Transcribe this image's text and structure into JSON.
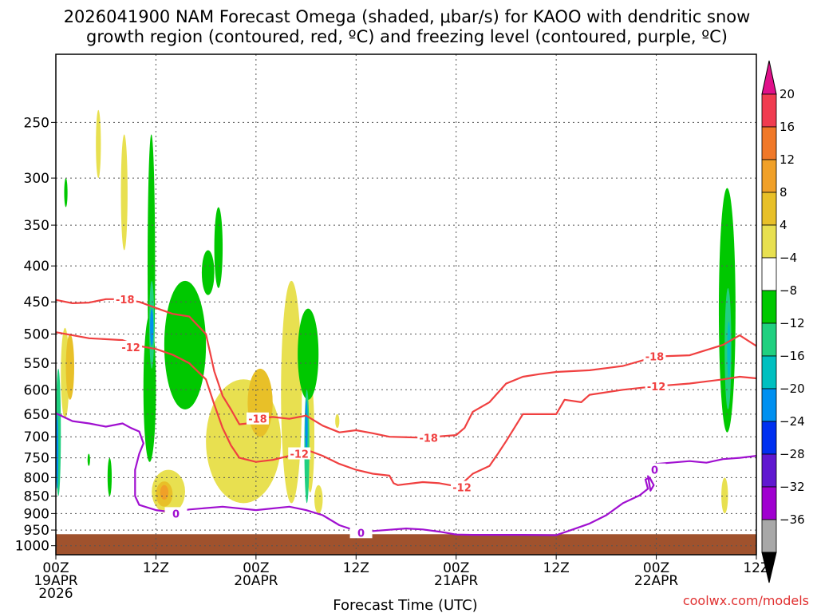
{
  "chart_data": {
    "type": "heatmap",
    "title_line1": "2026041900 NAM Forecast Omega (shaded, μbar/s) for KAOO with dendritic snow",
    "title_line2": "growth region (contoured, red, ºC) and freezing level (contoured, purple, ºC)",
    "xlabel": "Forecast Time (UTC)",
    "credit": "coolwx.com/models",
    "x_hours": [
      0,
      84
    ],
    "x_ticks": [
      {
        "h": 0,
        "l1": "00Z",
        "l2": "19APR",
        "l3": "2026"
      },
      {
        "h": 12,
        "l1": "12Z",
        "l2": "",
        "l3": ""
      },
      {
        "h": 24,
        "l1": "00Z",
        "l2": "20APR",
        "l3": ""
      },
      {
        "h": 36,
        "l1": "12Z",
        "l2": "",
        "l3": ""
      },
      {
        "h": 48,
        "l1": "00Z",
        "l2": "21APR",
        "l3": ""
      },
      {
        "h": 60,
        "l1": "12Z",
        "l2": "",
        "l3": ""
      },
      {
        "h": 72,
        "l1": "00Z",
        "l2": "22APR",
        "l3": ""
      },
      {
        "h": 84,
        "l1": "12Z",
        "l2": "",
        "l3": ""
      }
    ],
    "y_ticks": [
      250,
      300,
      350,
      400,
      450,
      500,
      550,
      600,
      650,
      700,
      750,
      800,
      850,
      900,
      950,
      1000
    ],
    "y_range_hpa": [
      200,
      1030
    ],
    "ground_top_hpa": 963,
    "grid": true,
    "colorbar": {
      "labels": [
        "20",
        "16",
        "12",
        "8",
        "4",
        "−4",
        "−8",
        "−12",
        "−16",
        "−20",
        "−24",
        "−28",
        "−32",
        "−36"
      ],
      "colors": [
        "#f03c50",
        "#f07828",
        "#f0a028",
        "#e8c028",
        "#e8e050",
        "#ffffff",
        "#00c800",
        "#20d080",
        "#00c0c0",
        "#0090f0",
        "#0030f0",
        "#6018d0",
        "#a000d0",
        "#a8a8a8"
      ],
      "top_arrow": "#e0108a",
      "bottom_arrow": "#000000"
    },
    "contours": [
      {
        "name": "-18",
        "color": "#f04040",
        "points": [
          [
            0,
            447
          ],
          [
            2,
            452
          ],
          [
            4,
            451
          ],
          [
            6,
            446
          ],
          [
            8,
            446
          ],
          [
            10,
            450
          ],
          [
            12,
            459
          ],
          [
            14,
            468
          ],
          [
            16,
            472
          ],
          [
            18,
            500
          ],
          [
            19,
            565
          ],
          [
            20,
            612
          ],
          [
            21,
            640
          ],
          [
            22,
            672
          ],
          [
            23,
            670
          ],
          [
            24,
            660
          ],
          [
            26,
            656
          ],
          [
            28,
            660
          ],
          [
            30,
            653
          ],
          [
            32,
            675
          ],
          [
            34,
            690
          ],
          [
            36,
            685
          ],
          [
            38,
            692
          ],
          [
            40,
            700
          ],
          [
            44,
            702
          ],
          [
            48,
            696
          ],
          [
            49,
            680
          ],
          [
            50,
            645
          ],
          [
            52,
            625
          ],
          [
            54,
            588
          ],
          [
            56,
            575
          ],
          [
            58,
            570
          ],
          [
            60,
            566
          ],
          [
            64,
            563
          ],
          [
            68,
            555
          ],
          [
            72,
            538
          ],
          [
            76,
            536
          ],
          [
            78,
            527
          ],
          [
            80,
            518
          ],
          [
            82,
            502
          ],
          [
            84,
            520
          ]
        ],
        "labels": [
          {
            "h": 8.3,
            "p": 446,
            "t": "-18"
          },
          {
            "h": 24.2,
            "p": 660,
            "t": "-18"
          },
          {
            "h": 44.7,
            "p": 702,
            "t": "-18"
          },
          {
            "h": 71.8,
            "p": 538,
            "t": "-18"
          }
        ]
      },
      {
        "name": "-12",
        "color": "#f04040",
        "points": [
          [
            0,
            497
          ],
          [
            4,
            507
          ],
          [
            8,
            510
          ],
          [
            10,
            520
          ],
          [
            12,
            525
          ],
          [
            14,
            535
          ],
          [
            16,
            550
          ],
          [
            18,
            580
          ],
          [
            19,
            630
          ],
          [
            20,
            680
          ],
          [
            21,
            720
          ],
          [
            22,
            750
          ],
          [
            24,
            760
          ],
          [
            26,
            755
          ],
          [
            28,
            745
          ],
          [
            30,
            730
          ],
          [
            32,
            745
          ],
          [
            34,
            765
          ],
          [
            36,
            780
          ],
          [
            38,
            790
          ],
          [
            40,
            795
          ],
          [
            40.5,
            815
          ],
          [
            41,
            820
          ],
          [
            44,
            812
          ],
          [
            46,
            815
          ],
          [
            48,
            823
          ],
          [
            49,
            810
          ],
          [
            50,
            790
          ],
          [
            52,
            770
          ],
          [
            53,
            740
          ],
          [
            54,
            710
          ],
          [
            56,
            650
          ],
          [
            60,
            650
          ],
          [
            61,
            620
          ],
          [
            63,
            625
          ],
          [
            64,
            610
          ],
          [
            68,
            600
          ],
          [
            72,
            593
          ],
          [
            76,
            588
          ],
          [
            80,
            580
          ],
          [
            82,
            575
          ],
          [
            84,
            578
          ]
        ],
        "labels": [
          {
            "h": 9.0,
            "p": 522,
            "t": "-12"
          },
          {
            "h": 29.2,
            "p": 740,
            "t": "-12"
          },
          {
            "h": 48.7,
            "p": 826,
            "t": "-12"
          },
          {
            "h": 72.0,
            "p": 593,
            "t": "-12"
          }
        ]
      },
      {
        "name": "0",
        "color": "#a010d0",
        "points": [
          [
            0,
            648
          ],
          [
            2,
            665
          ],
          [
            4,
            670
          ],
          [
            6,
            677
          ],
          [
            8,
            670
          ],
          [
            9,
            680
          ],
          [
            10,
            688
          ],
          [
            10.5,
            715
          ],
          [
            10,
            740
          ],
          [
            9.5,
            780
          ],
          [
            9.5,
            850
          ],
          [
            10,
            875
          ],
          [
            12,
            890
          ],
          [
            14,
            896
          ],
          [
            16,
            888
          ],
          [
            20,
            880
          ],
          [
            24,
            890
          ],
          [
            28,
            880
          ],
          [
            30,
            890
          ],
          [
            32,
            905
          ],
          [
            34,
            935
          ],
          [
            36,
            952
          ],
          [
            38,
            953
          ],
          [
            40,
            949
          ],
          [
            42,
            945
          ],
          [
            44,
            948
          ],
          [
            46,
            955
          ],
          [
            48,
            964
          ],
          [
            50,
            965
          ],
          [
            56,
            965
          ],
          [
            60,
            966
          ],
          [
            62,
            948
          ],
          [
            64,
            930
          ],
          [
            66,
            905
          ],
          [
            68,
            870
          ],
          [
            70,
            848
          ],
          [
            71,
            830
          ],
          [
            70.7,
            805
          ],
          [
            71.2,
            800
          ],
          [
            71.7,
            820
          ],
          [
            71.3,
            835
          ],
          [
            70.8,
            770
          ],
          [
            72,
            765
          ],
          [
            76,
            758
          ],
          [
            78,
            762
          ],
          [
            80,
            753
          ],
          [
            82,
            750
          ],
          [
            84,
            745
          ]
        ],
        "labels": [
          {
            "h": 14.4,
            "p": 900,
            "t": "0"
          },
          {
            "h": 36.6,
            "p": 958,
            "t": "0"
          },
          {
            "h": 71.8,
            "p": 780,
            "t": "0"
          }
        ]
      }
    ]
  }
}
